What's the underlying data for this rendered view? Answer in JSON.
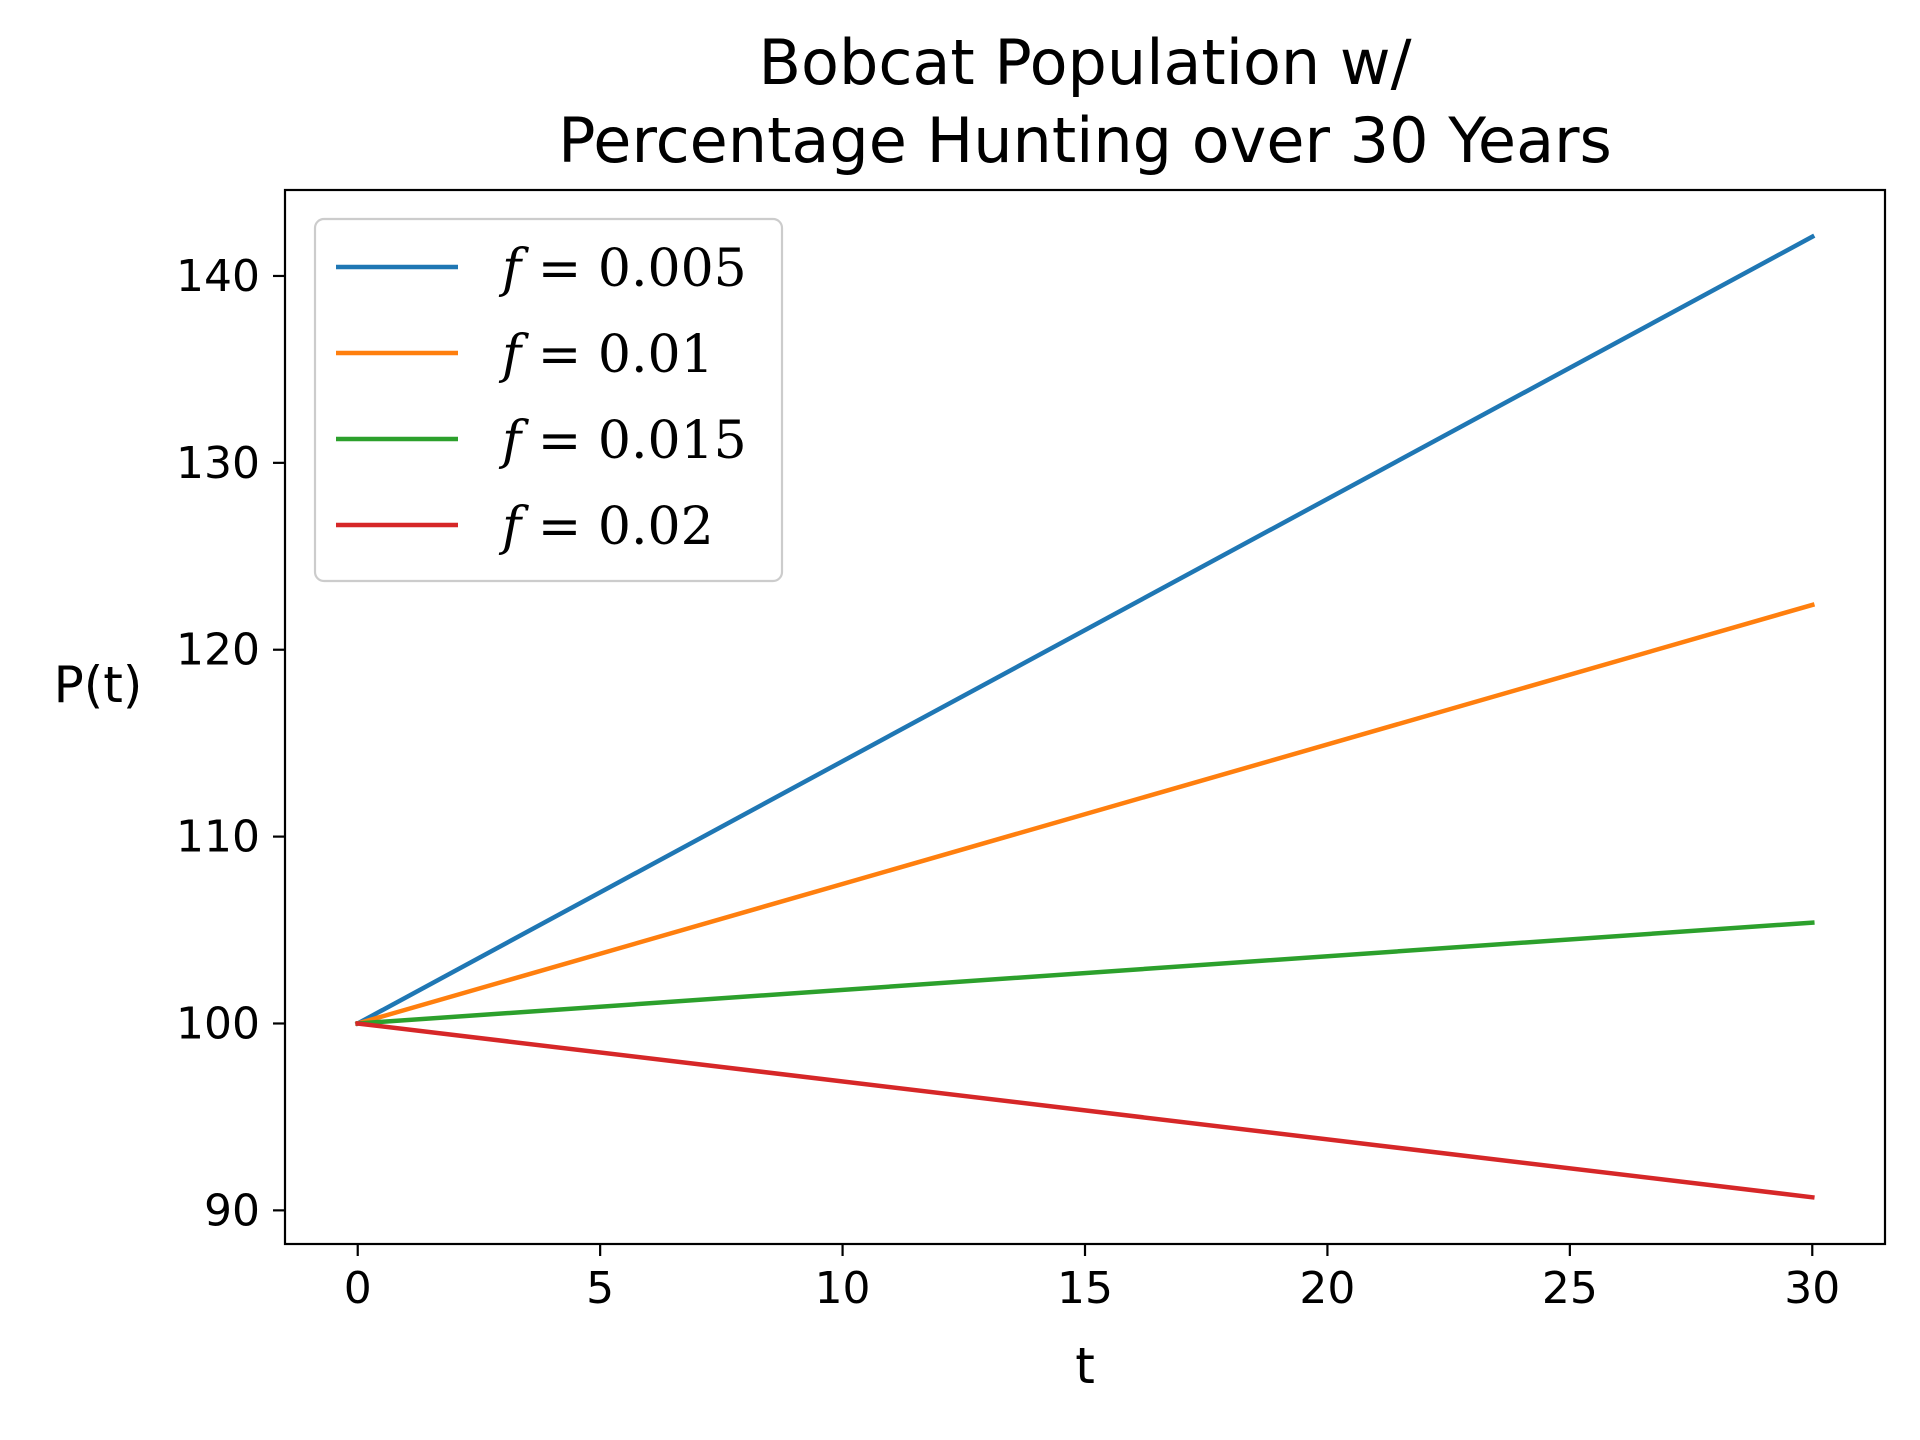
{
  "chart_data": {
    "type": "line",
    "title_lines": [
      "Bobcat Population w/",
      "Percentage Hunting over 30 Years"
    ],
    "xlabel": "t",
    "ylabel": "P(t)",
    "xlim": [
      -1.5,
      31.5
    ],
    "ylim": [
      88.2,
      144.6
    ],
    "xticks": [
      0,
      5,
      10,
      15,
      20,
      25,
      30
    ],
    "yticks": [
      90,
      100,
      110,
      120,
      130,
      140
    ],
    "grid": false,
    "legend_position": "upper-left",
    "x": [
      0,
      30
    ],
    "series": [
      {
        "name": "f = 0.005",
        "legend_var": "f",
        "legend_value": "= 0.005",
        "color": "#1f77b4",
        "values": [
          100,
          142.1
        ]
      },
      {
        "name": "f = 0.01",
        "legend_var": "f",
        "legend_value": "= 0.01",
        "color": "#ff7f0e",
        "values": [
          100,
          122.4
        ]
      },
      {
        "name": "f = 0.015",
        "legend_var": "f",
        "legend_value": "= 0.015",
        "color": "#2ca02c",
        "values": [
          100,
          105.4
        ]
      },
      {
        "name": "f = 0.02",
        "legend_var": "f",
        "legend_value": "= 0.02",
        "color": "#d62728",
        "values": [
          100,
          90.7
        ]
      }
    ]
  }
}
